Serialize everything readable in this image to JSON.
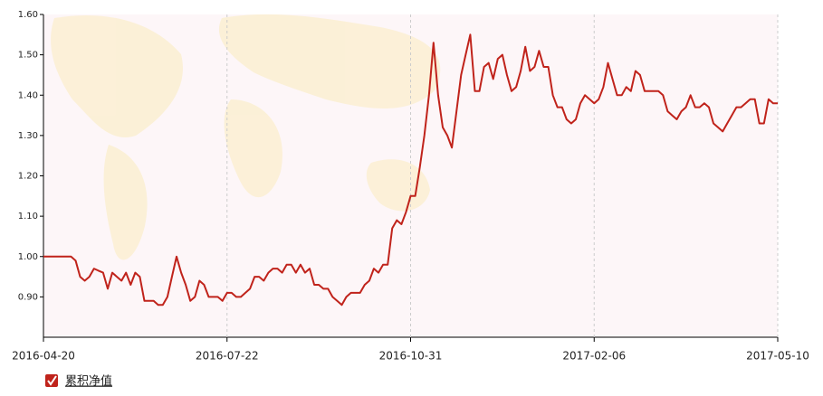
{
  "chart_data": {
    "type": "line",
    "categories": [
      "2016-04-20",
      null,
      null,
      null,
      null,
      null,
      null,
      null,
      null,
      null,
      null,
      null,
      null,
      null,
      null,
      null,
      null,
      null,
      null,
      null,
      null,
      null,
      null,
      null,
      null,
      null,
      null,
      null,
      null,
      null,
      null,
      null,
      null,
      null,
      null,
      null,
      null,
      null,
      null,
      null,
      "2016-07-22",
      null,
      null,
      null,
      null,
      null,
      null,
      null,
      null,
      null,
      null,
      null,
      null,
      null,
      null,
      null,
      null,
      null,
      null,
      null,
      null,
      null,
      null,
      null,
      null,
      null,
      null,
      null,
      null,
      null,
      null,
      null,
      null,
      null,
      null,
      null,
      null,
      null,
      null,
      null,
      "2016-10-31",
      null,
      null,
      null,
      null,
      null,
      null,
      null,
      null,
      null,
      null,
      null,
      null,
      null,
      null,
      null,
      null,
      null,
      null,
      null,
      null,
      null,
      null,
      null,
      null,
      null,
      null,
      null,
      null,
      null,
      null,
      null,
      null,
      null,
      null,
      null,
      null,
      null,
      null,
      null,
      "2017-02-06",
      null,
      null,
      null,
      null,
      null,
      null,
      null,
      null,
      null,
      null,
      null,
      null,
      null,
      null,
      null,
      null,
      null,
      null,
      null,
      null,
      null,
      null,
      null,
      null,
      null,
      null,
      null,
      null,
      null,
      null,
      null,
      null,
      null,
      null,
      null,
      null,
      null,
      null,
      null,
      "2017-05-10"
    ],
    "series": [
      {
        "name": "累积净值",
        "color": "#c0231b",
        "values": [
          1.0,
          1.0,
          1.0,
          1.0,
          1.0,
          1.0,
          1.0,
          0.99,
          0.95,
          0.94,
          0.95,
          0.97,
          0.965,
          0.96,
          0.92,
          0.96,
          0.95,
          0.94,
          0.96,
          0.93,
          0.96,
          0.95,
          0.89,
          0.89,
          0.89,
          0.88,
          0.88,
          0.9,
          0.95,
          1.0,
          0.96,
          0.93,
          0.89,
          0.9,
          0.94,
          0.93,
          0.9,
          0.9,
          0.9,
          0.89,
          0.91,
          0.91,
          0.9,
          0.9,
          0.91,
          0.92,
          0.95,
          0.95,
          0.94,
          0.96,
          0.97,
          0.97,
          0.96,
          0.98,
          0.98,
          0.96,
          0.98,
          0.96,
          0.97,
          0.93,
          0.93,
          0.92,
          0.92,
          0.9,
          0.89,
          0.88,
          0.9,
          0.91,
          0.91,
          0.91,
          0.93,
          0.94,
          0.97,
          0.96,
          0.98,
          0.98,
          1.07,
          1.09,
          1.08,
          1.11,
          1.15,
          1.15,
          1.22,
          1.3,
          1.4,
          1.53,
          1.4,
          1.32,
          1.3,
          1.27,
          1.36,
          1.45,
          1.5,
          1.55,
          1.41,
          1.41,
          1.47,
          1.48,
          1.44,
          1.49,
          1.5,
          1.45,
          1.41,
          1.42,
          1.46,
          1.52,
          1.46,
          1.47,
          1.51,
          1.47,
          1.47,
          1.4,
          1.37,
          1.37,
          1.34,
          1.33,
          1.34,
          1.38,
          1.4,
          1.39,
          1.38,
          1.39,
          1.42,
          1.48,
          1.44,
          1.4,
          1.4,
          1.42,
          1.41,
          1.46,
          1.45,
          1.41,
          1.41,
          1.41,
          1.41,
          1.4,
          1.36,
          1.35,
          1.34,
          1.36,
          1.37,
          1.4,
          1.37,
          1.37,
          1.38,
          1.37,
          1.33,
          1.32,
          1.31,
          1.33,
          1.35,
          1.37,
          1.37,
          1.38,
          1.39,
          1.39,
          1.33,
          1.33,
          1.39,
          1.38,
          1.38
        ]
      }
    ],
    "ylim": [
      0.8,
      1.6
    ],
    "yticks": [
      {
        "value": 0.9,
        "label": "0.90"
      },
      {
        "value": 1.0,
        "label": "1.00"
      },
      {
        "value": 1.1,
        "label": "1.10"
      },
      {
        "value": 1.2,
        "label": "1.20"
      },
      {
        "value": 1.3,
        "label": "1.30"
      },
      {
        "value": 1.4,
        "label": "1.40"
      },
      {
        "value": 1.5,
        "label": "1.50"
      },
      {
        "value": 1.6,
        "label": "1.60"
      }
    ],
    "xgrid": true
  }
}
